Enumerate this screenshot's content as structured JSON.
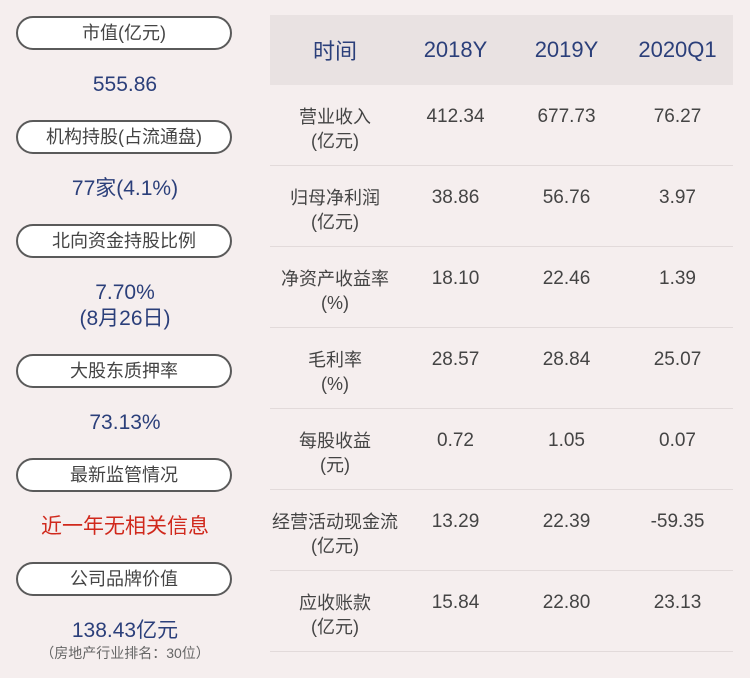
{
  "left": {
    "items": [
      {
        "label": "市值(亿元)",
        "value": "555.86"
      },
      {
        "label": "机构持股(占流通盘)",
        "value": "77家(4.1%)"
      },
      {
        "label": "北向资金持股比例",
        "value": "7.70%",
        "value2": "(8月26日)"
      },
      {
        "label": "大股东质押率",
        "value": "73.13%"
      },
      {
        "label": "最新监管情况",
        "value": "近一年无相关信息"
      },
      {
        "label": "公司品牌价值",
        "value": "138.43亿元",
        "note": "（房地产行业排名：30位）"
      }
    ]
  },
  "table": {
    "headers": [
      "时间",
      "2018Y",
      "2019Y",
      "2020Q1"
    ],
    "rows": [
      {
        "label": "营业收入",
        "unit": "(亿元)",
        "values": [
          "412.34",
          "677.73",
          "76.27"
        ]
      },
      {
        "label": "归母净利润",
        "unit": "(亿元)",
        "values": [
          "38.86",
          "56.76",
          "3.97"
        ]
      },
      {
        "label": "净资产收益率",
        "unit": "(%)",
        "values": [
          "18.10",
          "22.46",
          "1.39"
        ]
      },
      {
        "label": "毛利率",
        "unit": "(%)",
        "values": [
          "28.57",
          "28.84",
          "25.07"
        ]
      },
      {
        "label": "每股收益",
        "unit": "(元)",
        "values": [
          "0.72",
          "1.05",
          "0.07"
        ]
      },
      {
        "label": "经营活动现金流",
        "unit": "(亿元)",
        "values": [
          "13.29",
          "22.39",
          "-59.35"
        ]
      },
      {
        "label": "应收账款",
        "unit": "(亿元)",
        "values": [
          "15.84",
          "22.80",
          "23.13"
        ]
      }
    ]
  },
  "colors": {
    "accent": "#2b3f7a",
    "alert": "#d0281c",
    "background": "#f5eeee"
  }
}
